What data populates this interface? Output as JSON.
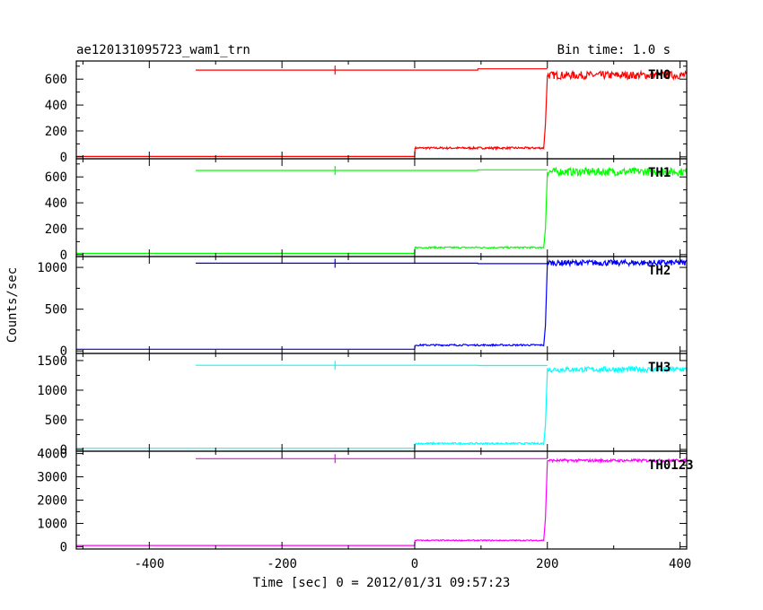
{
  "header": {
    "title": "ae120131095723_wam1_trn",
    "bin_time": "Bin time: 1.0 s"
  },
  "axes": {
    "xlabel": "Time [sec] 0 = 2012/01/31 09:57:23",
    "ylabel": "Counts/sec"
  },
  "chart_data": {
    "type": "line",
    "title": "ae120131095723_wam1_trn",
    "subtitle": "Bin time: 1.0 s",
    "xlabel": "Time [sec] 0 = 2012/01/31 09:57:23",
    "ylabel": "Counts/sec",
    "xlim": [
      -510,
      410
    ],
    "xticks": [
      -400,
      -200,
      0,
      200,
      400
    ],
    "grid": false,
    "panels": [
      {
        "name": "TH0",
        "color": "#ff0000",
        "ylim": [
          -15,
          740
        ],
        "yticks": [
          0,
          200,
          400,
          600
        ],
        "series": [
          {
            "x": [
              -510,
              0,
              0.5,
              195,
              197,
              200,
              410
            ],
            "y": [
              3,
              3,
              68,
              68,
              250,
              630,
              630
            ],
            "noise": [
              0,
              0,
              8,
              8,
              0,
              30,
              30
            ]
          },
          {
            "x": [
              -330,
              95,
              95.5,
              200
            ],
            "y": [
              670,
              670,
              680,
              680
            ],
            "marker": -120
          }
        ]
      },
      {
        "name": "TH1",
        "color": "#00ff00",
        "ylim": [
          -15,
          740
        ],
        "yticks": [
          0,
          200,
          400,
          600
        ],
        "series": [
          {
            "x": [
              -510,
              0,
              0.5,
              195,
              197,
              200,
              410
            ],
            "y": [
              10,
              10,
              55,
              55,
              200,
              640,
              640
            ],
            "noise": [
              0,
              0,
              6,
              6,
              0,
              30,
              30
            ]
          },
          {
            "x": [
              -330,
              95,
              95.5,
              200
            ],
            "y": [
              650,
              650,
              655,
              655
            ],
            "marker": -120
          }
        ]
      },
      {
        "name": "TH2",
        "color": "#0000ff",
        "ylim": [
          -30,
          1130
        ],
        "yticks": [
          0,
          500,
          1000
        ],
        "series": [
          {
            "x": [
              -510,
              0,
              0.5,
              195,
              197,
              200,
              410
            ],
            "y": [
              20,
              20,
              70,
              70,
              300,
              1055,
              1055
            ],
            "noise": [
              0,
              0,
              10,
              10,
              0,
              35,
              35
            ]
          },
          {
            "x": [
              -330,
              95,
              95.5,
              200
            ],
            "y": [
              1050,
              1050,
              1045,
              1045
            ],
            "marker": -120
          }
        ]
      },
      {
        "name": "TH3",
        "color": "#00ffff",
        "ylim": [
          -30,
          1620
        ],
        "yticks": [
          0,
          500,
          1000,
          1500
        ],
        "series": [
          {
            "x": [
              -510,
              0,
              0.5,
              195,
              197,
              200,
              410
            ],
            "y": [
              20,
              20,
              100,
              100,
              400,
              1350,
              1350
            ],
            "noise": [
              0,
              0,
              15,
              15,
              0,
              45,
              45
            ]
          },
          {
            "x": [
              -330,
              95,
              95.5,
              200
            ],
            "y": [
              1420,
              1420,
              1415,
              1415
            ],
            "marker": -120
          }
        ]
      },
      {
        "name": "TH0123",
        "color": "#ff00ff",
        "ylim": [
          -100,
          4100
        ],
        "yticks": [
          0,
          1000,
          2000,
          3000,
          4000
        ],
        "series": [
          {
            "x": [
              -510,
              0,
              0.5,
              195,
              197,
              200,
              410
            ],
            "y": [
              50,
              50,
              270,
              270,
              1200,
              3700,
              3700
            ],
            "noise": [
              0,
              0,
              25,
              25,
              0,
              60,
              60
            ]
          },
          {
            "x": [
              -330,
              200
            ],
            "y": [
              3780,
              3780
            ],
            "marker": -120
          }
        ]
      }
    ]
  }
}
